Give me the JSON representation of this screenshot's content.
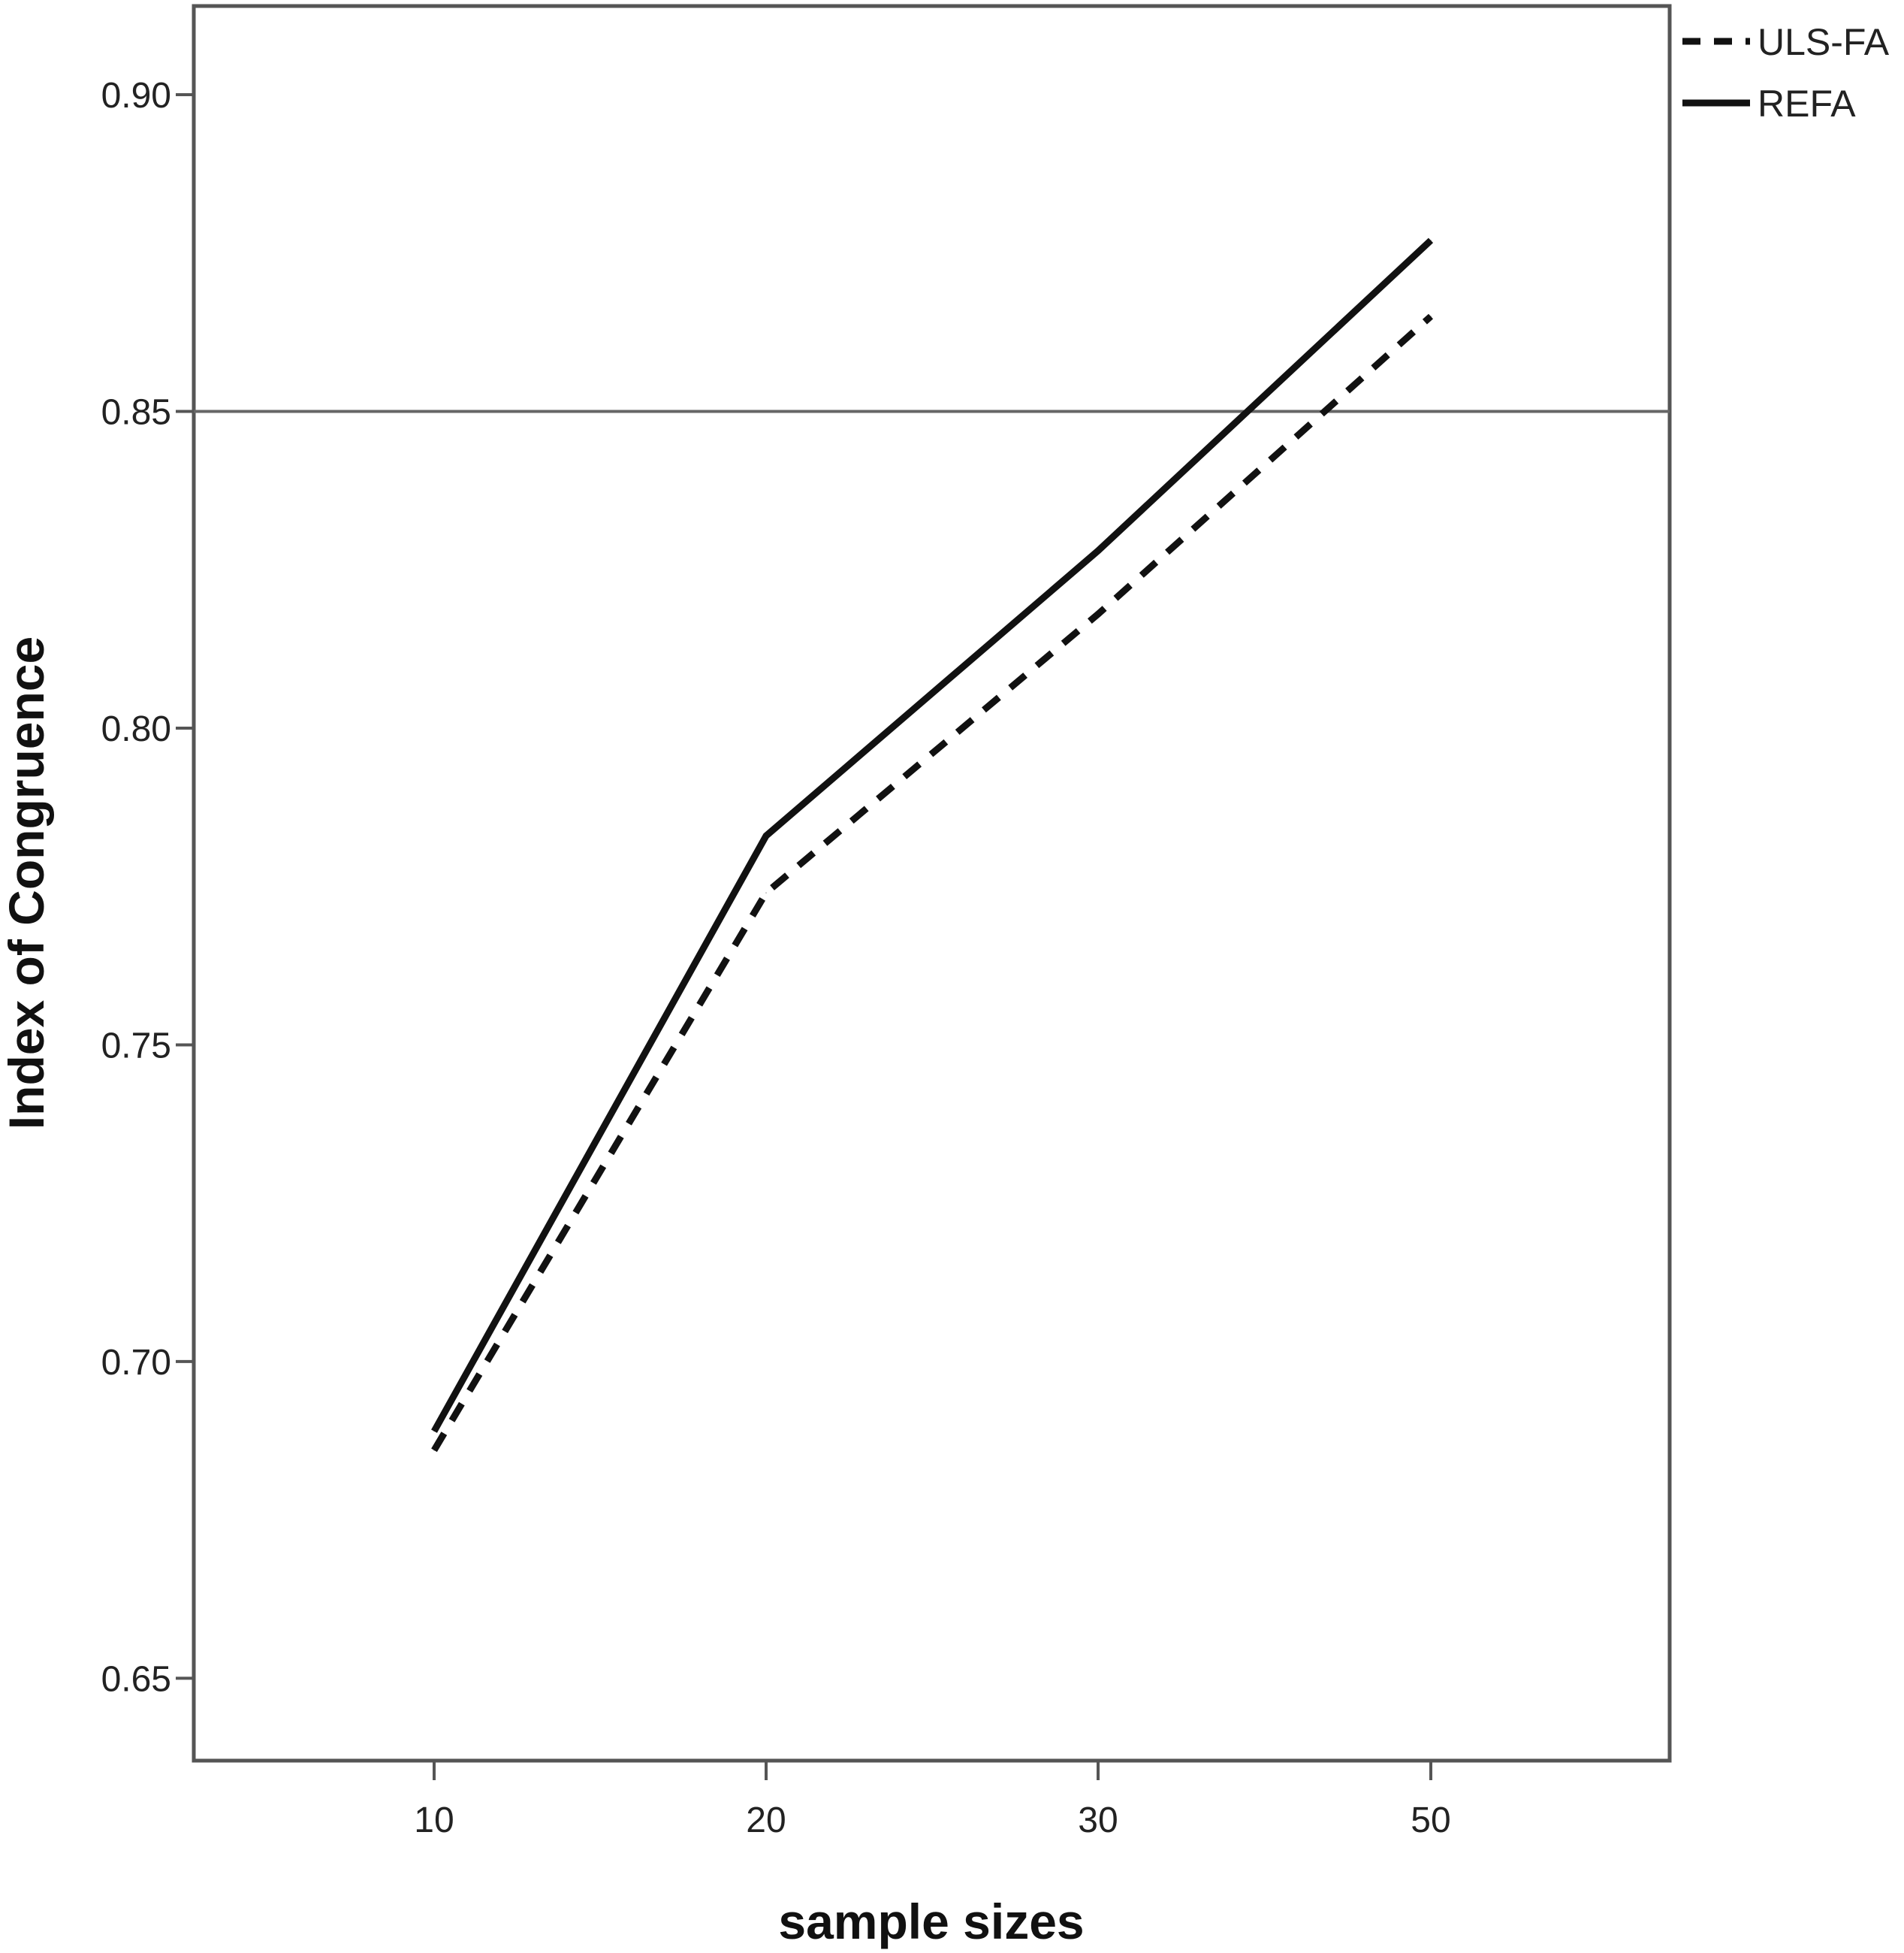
{
  "chart_data": {
    "type": "line",
    "xlabel": "sample sizes",
    "ylabel": "Index of Congruence",
    "categories": [
      "10",
      "20",
      "30",
      "50"
    ],
    "series": [
      {
        "name": "ULS-FA",
        "values": [
          0.686,
          0.774,
          0.818,
          0.865
        ],
        "dash": "dashed",
        "color": "#111111"
      },
      {
        "name": "REFA",
        "values": [
          0.689,
          0.783,
          0.828,
          0.877
        ],
        "dash": "solid",
        "color": "#111111"
      }
    ],
    "ylim": [
      0.637,
      0.914
    ],
    "yticks": [
      "0.65",
      "0.70",
      "0.75",
      "0.80",
      "0.85",
      "0.90"
    ],
    "reference_line": 0.85,
    "grid": false,
    "legend_position": "top-right"
  }
}
